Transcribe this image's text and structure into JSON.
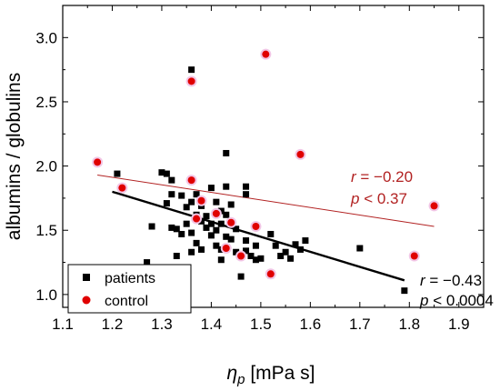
{
  "chart_data": {
    "type": "scatter",
    "xlabel_symbol": "η",
    "xlabel_sub": "p",
    "xlabel_unit": " [mPa s]",
    "ylabel": "albumins / globulins",
    "xlim": [
      1.1,
      1.95
    ],
    "ylim": [
      0.9,
      3.25
    ],
    "x_ticks": [
      "1.1",
      "1.2",
      "1.3",
      "1.4",
      "1.5",
      "1.6",
      "1.7",
      "1.8",
      "1.9"
    ],
    "x_tick_values": [
      1.1,
      1.2,
      1.3,
      1.4,
      1.5,
      1.6,
      1.7,
      1.8,
      1.9
    ],
    "y_ticks": [
      "1.0",
      "1.5",
      "2.0",
      "2.5",
      "3.0"
    ],
    "y_tick_values": [
      1.0,
      1.5,
      2.0,
      2.5,
      3.0
    ],
    "grid": false,
    "legend_position": "bottom-left",
    "series": [
      {
        "name": "patients",
        "color": "#000000",
        "marker": "square",
        "points": [
          [
            1.21,
            1.94
          ],
          [
            1.27,
            1.25
          ],
          [
            1.28,
            1.53
          ],
          [
            1.3,
            1.95
          ],
          [
            1.31,
            1.94
          ],
          [
            1.31,
            1.71
          ],
          [
            1.32,
            1.89
          ],
          [
            1.32,
            1.52
          ],
          [
            1.32,
            1.78
          ],
          [
            1.33,
            1.51
          ],
          [
            1.33,
            1.3
          ],
          [
            1.34,
            1.77
          ],
          [
            1.34,
            1.47
          ],
          [
            1.35,
            1.68
          ],
          [
            1.35,
            1.55
          ],
          [
            1.36,
            2.75
          ],
          [
            1.36,
            1.72
          ],
          [
            1.36,
            1.48
          ],
          [
            1.36,
            1.33
          ],
          [
            1.37,
            1.78
          ],
          [
            1.37,
            1.62
          ],
          [
            1.37,
            1.4
          ],
          [
            1.38,
            1.57
          ],
          [
            1.38,
            1.35
          ],
          [
            1.38,
            1.69
          ],
          [
            1.39,
            1.52
          ],
          [
            1.39,
            1.61
          ],
          [
            1.4,
            1.83
          ],
          [
            1.4,
            1.55
          ],
          [
            1.4,
            1.46
          ],
          [
            1.41,
            1.38
          ],
          [
            1.41,
            1.72
          ],
          [
            1.41,
            1.5
          ],
          [
            1.42,
            1.35
          ],
          [
            1.42,
            1.65
          ],
          [
            1.42,
            1.55
          ],
          [
            1.42,
            1.27
          ],
          [
            1.43,
            2.1
          ],
          [
            1.43,
            1.84
          ],
          [
            1.43,
            1.45
          ],
          [
            1.43,
            1.62
          ],
          [
            1.43,
            1.37
          ],
          [
            1.44,
            1.56
          ],
          [
            1.44,
            1.7
          ],
          [
            1.44,
            1.43
          ],
          [
            1.45,
            1.51
          ],
          [
            1.45,
            1.33
          ],
          [
            1.46,
            1.14
          ],
          [
            1.47,
            1.84
          ],
          [
            1.47,
            1.78
          ],
          [
            1.47,
            1.42
          ],
          [
            1.47,
            1.34
          ],
          [
            1.48,
            1.3
          ],
          [
            1.49,
            1.38
          ],
          [
            1.49,
            1.27
          ],
          [
            1.5,
            1.28
          ],
          [
            1.52,
            1.15
          ],
          [
            1.52,
            1.47
          ],
          [
            1.53,
            1.38
          ],
          [
            1.54,
            1.3
          ],
          [
            1.55,
            1.33
          ],
          [
            1.56,
            1.28
          ],
          [
            1.57,
            1.39
          ],
          [
            1.58,
            1.35
          ],
          [
            1.59,
            1.42
          ],
          [
            1.7,
            1.36
          ],
          [
            1.79,
            1.03
          ]
        ]
      },
      {
        "name": "control",
        "color": "#e00000",
        "marker": "circle",
        "points": [
          [
            1.17,
            2.03
          ],
          [
            1.22,
            1.83
          ],
          [
            1.36,
            2.66
          ],
          [
            1.36,
            1.89
          ],
          [
            1.37,
            1.59
          ],
          [
            1.38,
            1.73
          ],
          [
            1.41,
            1.63
          ],
          [
            1.43,
            1.36
          ],
          [
            1.44,
            1.56
          ],
          [
            1.46,
            1.3
          ],
          [
            1.49,
            1.53
          ],
          [
            1.51,
            2.87
          ],
          [
            1.52,
            1.16
          ],
          [
            1.58,
            2.09
          ],
          [
            1.81,
            1.3
          ],
          [
            1.85,
            1.69
          ]
        ]
      }
    ],
    "fit_lines": [
      {
        "series": "patients",
        "color": "#000000",
        "x": [
          1.2,
          1.79
        ],
        "y": [
          1.8,
          1.11
        ]
      },
      {
        "series": "control",
        "color": "#b22222",
        "x": [
          1.17,
          1.85
        ],
        "y": [
          1.93,
          1.53
        ]
      }
    ],
    "annotations": [
      {
        "id": "control-r",
        "r_label": "r",
        "text": " = −0.20",
        "color": "#b22222"
      },
      {
        "id": "control-p",
        "r_label": "p",
        "text": " < 0.37",
        "color": "#b22222"
      },
      {
        "id": "patients-r",
        "r_label": "r",
        "text": " = −0.43",
        "color": "#000000"
      },
      {
        "id": "patients-p",
        "r_label": "p",
        "text": " < 0.0004",
        "color": "#000000"
      }
    ]
  }
}
